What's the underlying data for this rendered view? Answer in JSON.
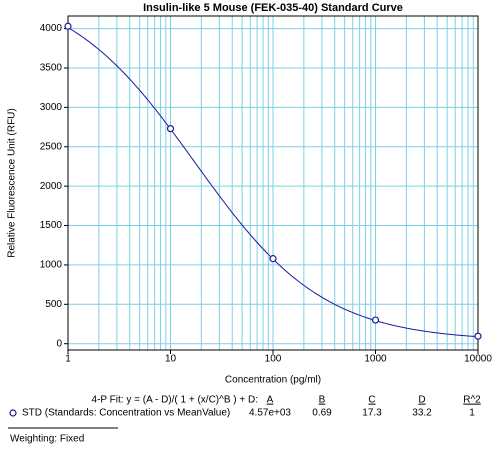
{
  "chart_data": {
    "type": "scatter",
    "title": "Insulin-like 5 Mouse (FEK-035-40) Standard Curve",
    "x_label": "Concentration (pg/ml)",
    "y_label": "Relative Fluorescence Unit (RFU)",
    "log_x": true,
    "grid": true,
    "minor_grid": true,
    "xlim": [
      1,
      10000
    ],
    "ylim": [
      -80,
      4160
    ],
    "xticks": [
      1,
      10,
      100,
      1000,
      10000
    ],
    "yticks": [
      0,
      500,
      1000,
      1500,
      2000,
      2500,
      3000,
      3500,
      4000
    ],
    "grid_color": "#7fd0e6",
    "series": [
      {
        "name": "STD (Standards: Concentration vs MeanValue)",
        "color": "#1a1a9c",
        "x": [
          1,
          10,
          100,
          1000,
          10000
        ],
        "values": [
          4030,
          2730,
          1080,
          300,
          95
        ]
      }
    ],
    "fit": {
      "label": "4-P Fit: y = (A - D)/( 1 + (x/C)^B ) + D:",
      "params": [
        {
          "name": "A",
          "value": 4570,
          "label": "4.57e+03"
        },
        {
          "name": "B",
          "value": 0.69
        },
        {
          "name": "C",
          "value": 17.3
        },
        {
          "name": "D",
          "value": 33.2
        }
      ],
      "r2": {
        "name": "R^2",
        "value": 1
      }
    },
    "weighting": "Weighting: Fixed"
  }
}
